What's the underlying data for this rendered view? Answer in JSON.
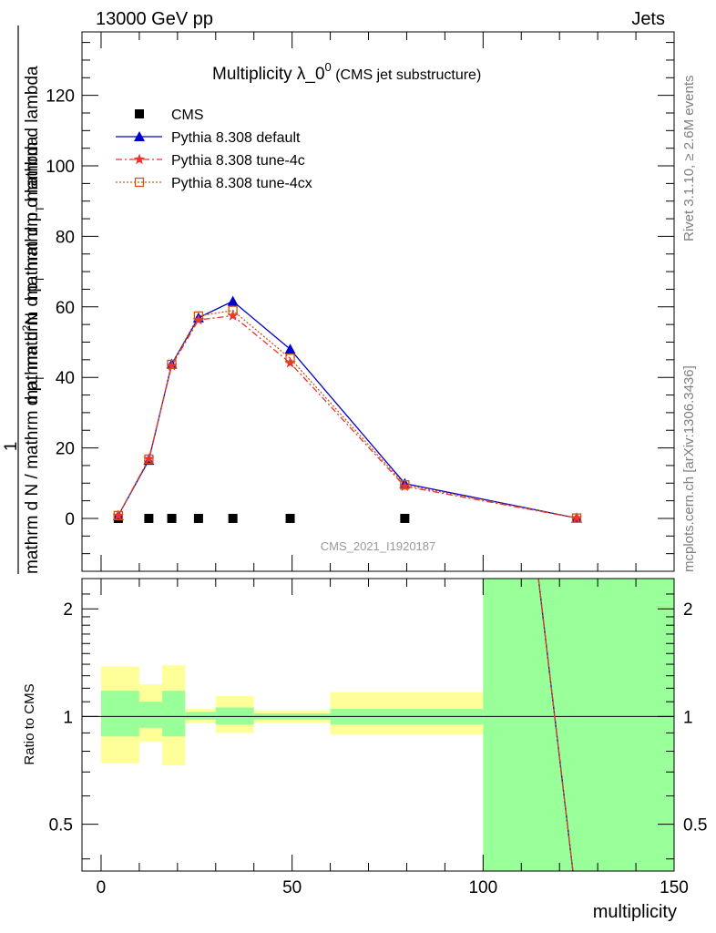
{
  "header": {
    "left": "13000 GeV pp",
    "right": "Jets"
  },
  "side_text": {
    "rivet": "Rivet 3.1.10, ≥ 2.6M events",
    "mcplots": "mcplots.cern.ch [arXiv:1306.3436]"
  },
  "watermark": "CMS_2021_I1920187",
  "title": {
    "main": "Multiplicity λ_0",
    "sup": "0",
    "sub": " (CMS jet substructure)"
  },
  "ylabel": {
    "top": "mathrm d²N",
    "top_a": "mathrm d",
    "top_sup": "2",
    "top_b": "N",
    "denom_a": "mathrm d p",
    "denom_sub": "T",
    "denom_b": " mathrm d lambda",
    "one": "1",
    "bottom_a": "mathrm d N / mathrm d p",
    "bottom_sub": "T",
    "bottom_b": " mathrm d p",
    "bottom_sub2": "T",
    "bottom_c": " mathrm d lambda"
  },
  "chart_data": [
    {
      "type": "line",
      "panel": "main",
      "xlim": [
        -5,
        150
      ],
      "ylim": [
        -15,
        138
      ],
      "yticks": [
        0,
        20,
        40,
        60,
        80,
        100,
        120
      ],
      "grid": false,
      "legend_position": "top-left",
      "series": [
        {
          "name": "CMS",
          "marker": "square",
          "color": "#000000",
          "x": [
            4.5,
            12.5,
            18.5,
            25.5,
            34.5,
            49.5,
            79.5
          ],
          "y": [
            0,
            0,
            0,
            0,
            0,
            0,
            0
          ]
        },
        {
          "name": "Pythia 8.308 default",
          "marker": "triangle",
          "color": "#0000cc",
          "x": [
            4.5,
            12.5,
            18.5,
            25.5,
            34.5,
            49.5,
            79.5,
            124.5
          ],
          "y": [
            0.8,
            16.5,
            43.8,
            56.9,
            61.6,
            48.0,
            9.9,
            0.1
          ]
        },
        {
          "name": "Pythia 8.308 tune-4c",
          "marker": "star",
          "color": "#ee3333",
          "x": [
            4.5,
            12.5,
            18.5,
            25.5,
            34.5,
            49.5,
            79.5,
            124.5
          ],
          "y": [
            0.8,
            16.9,
            43.3,
            56.3,
            57.5,
            44.1,
            9.1,
            0.1
          ]
        },
        {
          "name": "Pythia 8.308 tune-4cx",
          "marker": "open-square",
          "color": "#cc5511",
          "x": [
            4.5,
            12.5,
            18.5,
            25.5,
            34.5,
            49.5,
            79.5,
            124.5
          ],
          "y": [
            0.8,
            16.8,
            43.7,
            57.4,
            59.0,
            45.4,
            9.5,
            0.1
          ]
        }
      ]
    },
    {
      "type": "line",
      "panel": "ratio",
      "ylabel": "Ratio to CMS",
      "xlabel": "multiplicity",
      "xlim": [
        -5,
        150
      ],
      "ylim": [
        0.37,
        2.43
      ],
      "log_y": true,
      "yticks": [
        0.5,
        1,
        2
      ],
      "xticks": [
        0,
        50,
        100,
        150
      ],
      "reference": 1,
      "bands": [
        {
          "x0": 0,
          "x1": 10,
          "inner": [
            0.88,
            1.18
          ],
          "outer": [
            0.74,
            1.38
          ]
        },
        {
          "x0": 10,
          "x1": 16,
          "inner": [
            0.93,
            1.1
          ],
          "outer": [
            0.85,
            1.23
          ]
        },
        {
          "x0": 16,
          "x1": 22,
          "inner": [
            0.88,
            1.18
          ],
          "outer": [
            0.73,
            1.39
          ]
        },
        {
          "x0": 22,
          "x1": 30,
          "inner": [
            0.98,
            1.03
          ],
          "outer": [
            0.96,
            1.05
          ]
        },
        {
          "x0": 30,
          "x1": 40,
          "inner": [
            0.95,
            1.06
          ],
          "outer": [
            0.9,
            1.14
          ]
        },
        {
          "x0": 40,
          "x1": 60,
          "inner": [
            0.98,
            1.02
          ],
          "outer": [
            0.96,
            1.04
          ]
        },
        {
          "x0": 60,
          "x1": 100,
          "inner": [
            0.95,
            1.05
          ],
          "outer": [
            0.89,
            1.17
          ]
        },
        {
          "x0": 100,
          "x1": 150,
          "inner": [
            0.3,
            2.6
          ],
          "outer": [
            0.3,
            2.6
          ]
        }
      ],
      "series": [
        {
          "name": "Pythia 8.308 default",
          "color": "#0000cc",
          "x": [
            114.5,
            123.5
          ],
          "y": [
            2.5,
            0.37
          ]
        },
        {
          "name": "Pythia 8.308 tune-4c",
          "color": "#ee3333",
          "x": [
            114.5,
            123.5
          ],
          "y": [
            2.5,
            0.37
          ]
        },
        {
          "name": "Pythia 8.308 tune-4cx",
          "color": "#cc5511",
          "x": [
            114.5,
            123.5
          ],
          "y": [
            2.5,
            0.37
          ]
        }
      ]
    }
  ],
  "colors": {
    "band_inner": "#99ff99",
    "band_outer": "#ffff99",
    "gray_text": "#808080"
  }
}
